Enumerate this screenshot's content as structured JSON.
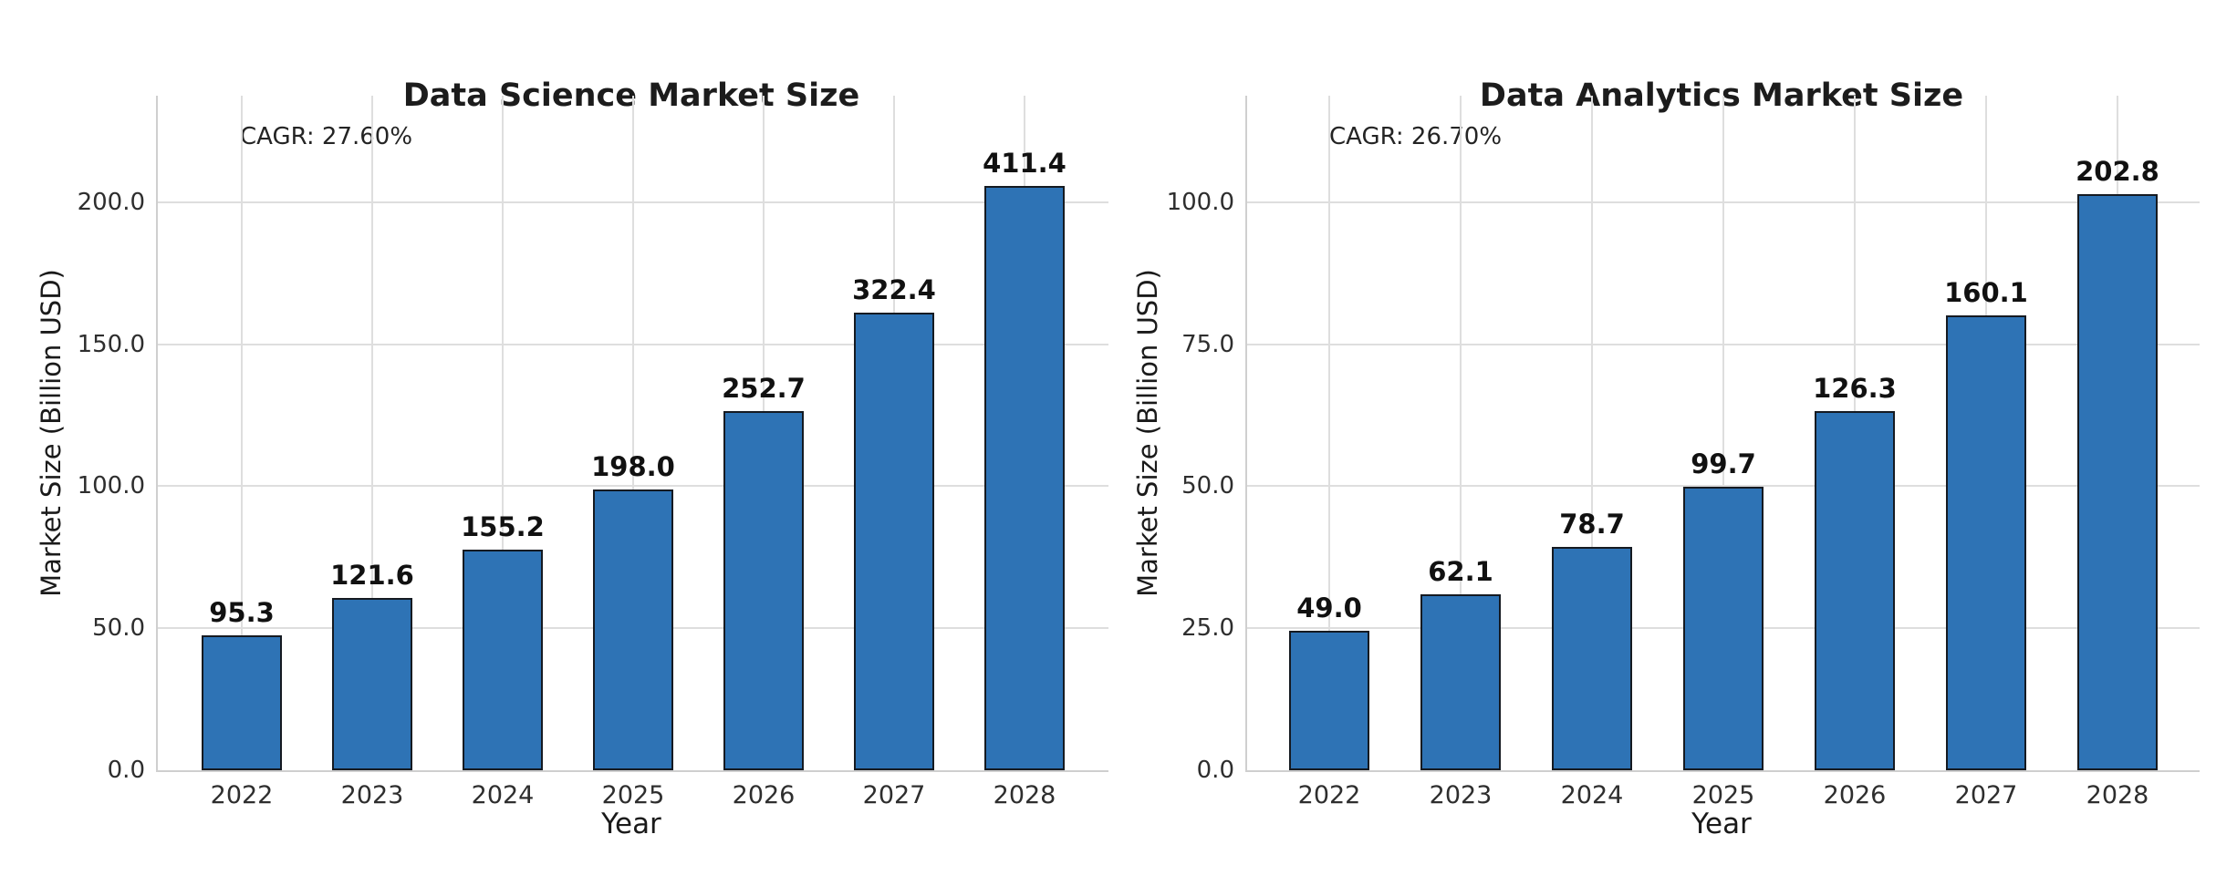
{
  "colors": {
    "bar_fill": "#2e73b5",
    "bar_edge": "#151a21",
    "grid": "#dedede",
    "axis": "#cfcfcf",
    "text": "#1a1a1a"
  },
  "chart_data": [
    {
      "id": "data-science",
      "type": "bar",
      "title": "Data Science Market Size",
      "annotation": "CAGR: 27.60%",
      "xlabel": "Year",
      "ylabel": "Market Size (Billion USD)",
      "categories": [
        "2022",
        "2023",
        "2024",
        "2025",
        "2026",
        "2027",
        "2028"
      ],
      "values": [
        95.3,
        121.6,
        155.2,
        198.0,
        252.7,
        322.4,
        411.4
      ],
      "bar_labels": [
        "95.3",
        "121.6",
        "155.2",
        "198.0",
        "252.7",
        "322.4",
        "411.4"
      ],
      "drawn_bar_heights_axis_units": [
        47.65,
        60.8,
        77.6,
        99.0,
        126.35,
        161.2,
        205.7
      ],
      "note": "bars are rendered at half of each labeled value relative to the y-axis scale",
      "ytick_values": [
        0,
        50,
        100,
        150,
        200
      ],
      "ytick_labels": [
        "0.0",
        "50.0",
        "100.0",
        "150.0",
        "200.0"
      ],
      "ylim": [
        0,
        237.5
      ],
      "grid": true,
      "legend": false
    },
    {
      "id": "data-analytics",
      "type": "bar",
      "title": "Data Analytics Market Size",
      "annotation": "CAGR: 26.70%",
      "xlabel": "Year",
      "ylabel": "Market Size (Billion USD)",
      "categories": [
        "2022",
        "2023",
        "2024",
        "2025",
        "2026",
        "2027",
        "2028"
      ],
      "values": [
        49.0,
        62.1,
        78.7,
        99.7,
        126.3,
        160.1,
        202.8
      ],
      "bar_labels": [
        "49.0",
        "62.1",
        "78.7",
        "99.7",
        "126.3",
        "160.1",
        "202.8"
      ],
      "drawn_bar_heights_axis_units": [
        24.5,
        31.05,
        39.35,
        49.85,
        63.15,
        80.05,
        101.4
      ],
      "note": "bars are rendered at half of each labeled value relative to the y-axis scale",
      "ytick_values": [
        0,
        25,
        50,
        75,
        100
      ],
      "ytick_labels": [
        "0.0",
        "25.0",
        "50.0",
        "75.0",
        "100.0"
      ],
      "ylim": [
        0,
        118.75
      ],
      "grid": true,
      "legend": false
    }
  ]
}
